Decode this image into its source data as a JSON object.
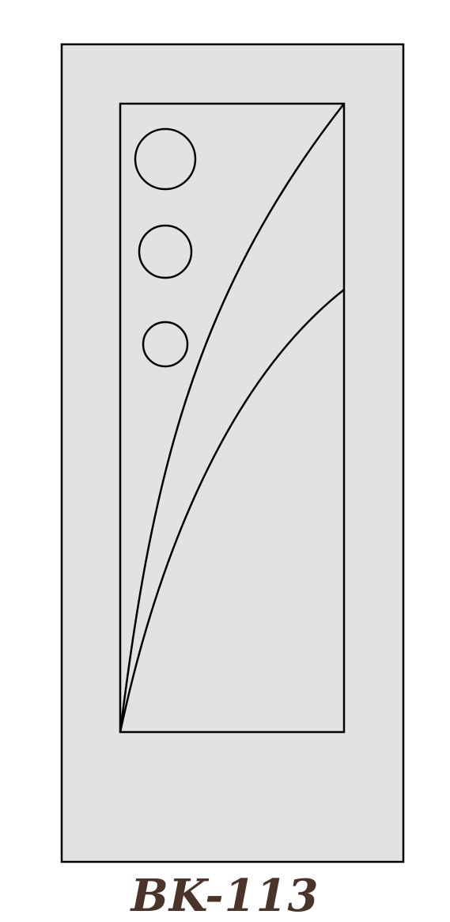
{
  "model_code": "BK-113",
  "colors": {
    "door_fill": "#e2e2e2",
    "line": "#000000",
    "background": "#ffffff",
    "label": "#4a3328"
  },
  "door": {
    "panel_count": 1,
    "circle_count": 3,
    "curve_count": 2
  }
}
